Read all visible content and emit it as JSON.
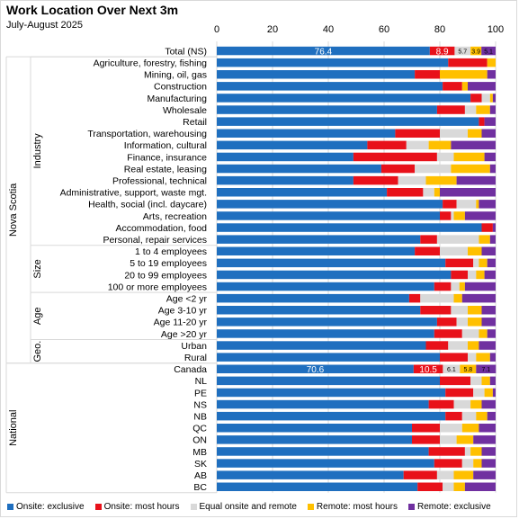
{
  "title": "Work Location Over Next 3m",
  "subtitle": "July-August 2025",
  "chart_data": {
    "type": "bar",
    "orientation": "horizontal",
    "stacked": true,
    "xlim": [
      0,
      100
    ],
    "xticks": [
      0,
      20,
      40,
      60,
      80,
      100
    ],
    "grid": true,
    "legend_position": "bottom",
    "colors": [
      "#1f6fbf",
      "#e8111a",
      "#d9d9d9",
      "#ffc000",
      "#7030a0"
    ],
    "series_names": [
      "Onsite: exclusive",
      "Onsite: most hours",
      "Equal onsite and remote",
      "Remote: most hours",
      "Remote: exclusive"
    ],
    "groups": [
      {
        "label": "",
        "parent": ""
      },
      {
        "label": "Industry",
        "parent": "Nova Scotia"
      },
      {
        "label": "Size",
        "parent": "Nova Scotia"
      },
      {
        "label": "Age",
        "parent": "Nova Scotia"
      },
      {
        "label": "Geo.",
        "parent": "Nova Scotia"
      },
      {
        "label": "",
        "parent": "National"
      }
    ],
    "outer_groups": [
      "Nova Scotia",
      "National"
    ],
    "rows": [
      {
        "label": "Total (NS)",
        "group": 0,
        "values": [
          76.4,
          8.9,
          5.7,
          3.9,
          5.1
        ],
        "data_labels": [
          "76.4",
          "8.9",
          "5.7",
          "3.9",
          "5.1"
        ]
      },
      {
        "label": "Agriculture, forestry, fishing",
        "group": 1,
        "values": [
          83,
          14,
          0,
          3,
          0
        ]
      },
      {
        "label": "Mining, oil, gas",
        "group": 1,
        "values": [
          71,
          9,
          0,
          17,
          3
        ]
      },
      {
        "label": "Construction",
        "group": 1,
        "values": [
          81,
          7,
          0,
          2,
          10
        ]
      },
      {
        "label": "Manufacturing",
        "group": 1,
        "values": [
          91,
          4,
          3,
          1,
          1
        ]
      },
      {
        "label": "Wholesale",
        "group": 1,
        "values": [
          79,
          10,
          4,
          5,
          2
        ]
      },
      {
        "label": "Retail",
        "group": 1,
        "values": [
          94,
          2,
          0,
          0,
          4
        ]
      },
      {
        "label": "Transportation, warehousing",
        "group": 1,
        "values": [
          64,
          16,
          10,
          5,
          5
        ]
      },
      {
        "label": "Information, cultural",
        "group": 1,
        "values": [
          54,
          14,
          8,
          8,
          16
        ]
      },
      {
        "label": "Finance, insurance",
        "group": 1,
        "values": [
          49,
          30,
          6,
          11,
          4
        ]
      },
      {
        "label": "Real estate, leasing",
        "group": 1,
        "values": [
          59,
          12,
          13,
          14,
          2
        ]
      },
      {
        "label": "Professional, technical",
        "group": 1,
        "values": [
          49,
          16,
          10,
          11,
          14
        ]
      },
      {
        "label": "Administrative, support, waste mgt.",
        "group": 1,
        "values": [
          61,
          13,
          4,
          2,
          20
        ]
      },
      {
        "label": "Health, social (incl. daycare)",
        "group": 1,
        "values": [
          81,
          5,
          7,
          1,
          6
        ]
      },
      {
        "label": "Arts, recreation",
        "group": 1,
        "values": [
          80,
          4,
          1,
          4,
          11
        ]
      },
      {
        "label": "Accommodation, food",
        "group": 1,
        "values": [
          95,
          4,
          0,
          0,
          1
        ]
      },
      {
        "label": "Personal, repair services",
        "group": 1,
        "values": [
          73,
          6,
          15,
          4,
          2
        ]
      },
      {
        "label": "1 to 4 employees",
        "group": 2,
        "values": [
          71,
          9,
          10,
          5,
          5
        ]
      },
      {
        "label": "5 to 19 employees",
        "group": 2,
        "values": [
          82,
          10,
          2,
          3,
          3
        ]
      },
      {
        "label": "20 to 99 employees",
        "group": 2,
        "values": [
          84,
          6,
          3,
          3,
          4
        ]
      },
      {
        "label": "100 or more employees",
        "group": 2,
        "values": [
          78,
          6,
          3,
          2,
          11
        ]
      },
      {
        "label": "Age <2 yr",
        "group": 3,
        "values": [
          69,
          4,
          12,
          3,
          12
        ]
      },
      {
        "label": "Age 3-10 yr",
        "group": 3,
        "values": [
          73,
          11,
          6,
          5,
          5
        ]
      },
      {
        "label": "Age 11-20 yr",
        "group": 3,
        "values": [
          79,
          7,
          4,
          5,
          5
        ]
      },
      {
        "label": "Age >20 yr",
        "group": 3,
        "values": [
          78,
          10,
          6,
          3,
          3
        ]
      },
      {
        "label": "Urban",
        "group": 4,
        "values": [
          75,
          8,
          7,
          4,
          6
        ]
      },
      {
        "label": "Rural",
        "group": 4,
        "values": [
          80,
          10,
          3,
          5,
          2
        ]
      },
      {
        "label": "Canada",
        "group": 5,
        "values": [
          70.6,
          10.5,
          6.1,
          5.8,
          7.1
        ],
        "data_labels": [
          "70.6",
          "10.5",
          "6.1",
          "5.8",
          "7.1"
        ]
      },
      {
        "label": "NL",
        "group": 5,
        "values": [
          80,
          11,
          4,
          3,
          2
        ]
      },
      {
        "label": "PE",
        "group": 5,
        "values": [
          82,
          10,
          4,
          3,
          1
        ]
      },
      {
        "label": "NS",
        "group": 5,
        "values": [
          76,
          9,
          6,
          4,
          5
        ]
      },
      {
        "label": "NB",
        "group": 5,
        "values": [
          82,
          6,
          5,
          4,
          3
        ]
      },
      {
        "label": "QC",
        "group": 5,
        "values": [
          70,
          10,
          8,
          6,
          6
        ]
      },
      {
        "label": "ON",
        "group": 5,
        "values": [
          70,
          10,
          6,
          6,
          8
        ]
      },
      {
        "label": "MB",
        "group": 5,
        "values": [
          76,
          13,
          2,
          4,
          5
        ]
      },
      {
        "label": "SK",
        "group": 5,
        "values": [
          78,
          10,
          4,
          3,
          5
        ]
      },
      {
        "label": "AB",
        "group": 5,
        "values": [
          67,
          12,
          6,
          7,
          8
        ]
      },
      {
        "label": "BC",
        "group": 5,
        "values": [
          72,
          9,
          4,
          4,
          11
        ]
      }
    ]
  }
}
